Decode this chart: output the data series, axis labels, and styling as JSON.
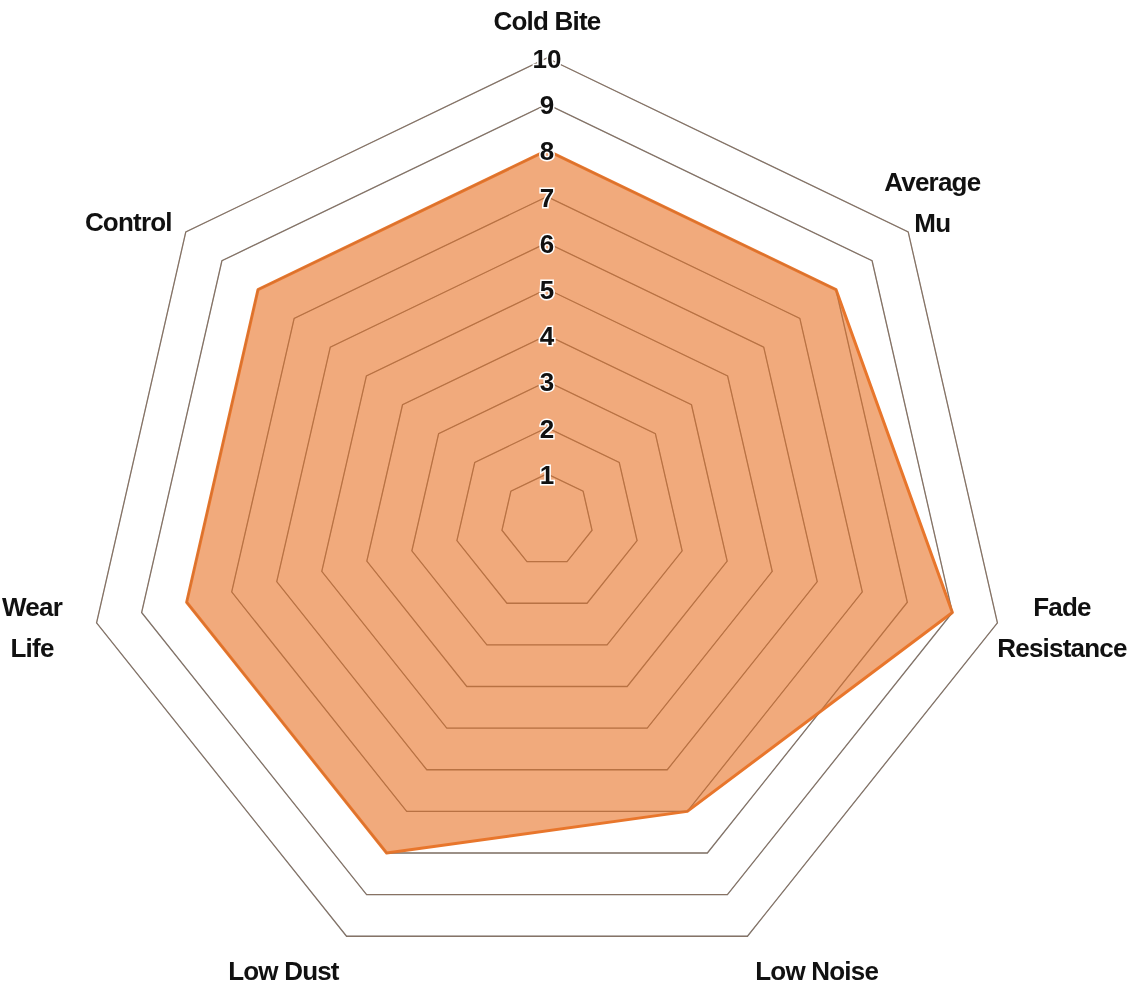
{
  "chart_data": {
    "type": "radar",
    "categories": [
      "Cold Bite",
      "Average Mu",
      "Fade Resistance",
      "Low Noise",
      "Low Dust",
      "Wear Life",
      "Control"
    ],
    "series": [
      {
        "color": "#e8762c",
        "values": [
          8,
          8,
          9,
          7,
          8,
          8,
          8
        ]
      }
    ],
    "ylim": [
      0,
      10
    ],
    "yticks": [
      1,
      2,
      3,
      4,
      5,
      6,
      7,
      8,
      9,
      10
    ],
    "grid": true
  }
}
